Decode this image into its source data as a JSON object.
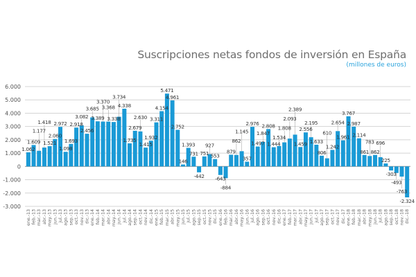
{
  "chart_data": {
    "type": "bar",
    "title": "Suscripciones netas fondos de inversión en España",
    "subtitle": "(millones de euros)",
    "xlabel": "",
    "ylabel": "",
    "ylim": [
      -3000,
      6000
    ],
    "yticks": [
      6000,
      5000,
      4000,
      3000,
      2000,
      1000,
      0,
      -1000,
      -2000,
      -3000
    ],
    "ytick_labels": [
      "6.000",
      "5.000",
      "4.000",
      "3.000",
      "2.000",
      "1.000",
      "0",
      "-1.000",
      "-2.000",
      "-3.000"
    ],
    "grid": true,
    "bar_color": "#1a9ad6",
    "categories": [
      "ene.-13",
      "feb.-13",
      "mar.-13",
      "abr.-13",
      "may.-13",
      "jun.-13",
      "jul.-13",
      "ago.-13",
      "sep.-13",
      "oct.-13",
      "nov.-13",
      "dic.-13",
      "ene.-14",
      "feb.-14",
      "mar.-14",
      "abr.-14",
      "may.-14",
      "jun.-14",
      "jul.-14",
      "ago.-14",
      "sep.-14",
      "oct.-14",
      "nov.-14",
      "dic.-14",
      "ene.-15",
      "feb.-15",
      "mar.-15",
      "abr.-15",
      "may.-15",
      "jun.-15",
      "jul.-15",
      "ago.-15",
      "sep.-15",
      "oct.-15",
      "nov.-15",
      "dic.-15",
      "ene.-16",
      "feb.-16",
      "mar.-16",
      "abr.-16",
      "may.-16",
      "jun.-16",
      "jul.-16",
      "ago.-16",
      "sep.-16",
      "oct.-16",
      "nov.-16",
      "dic.-16",
      "ene.-17",
      "feb.-17",
      "mar.-17",
      "abr.-17",
      "may.-17",
      "jun.-17",
      "jul.-17",
      "ago.-17",
      "sep.-17",
      "oct.-17",
      "nov.-17",
      "dic.-17",
      "ene.-18",
      "feb.-18",
      "mar.-18",
      "abr.-18",
      "may.-18",
      "jun.-18",
      "jul.-18",
      "ago.-18",
      "sep.-18",
      "oct.-18",
      "nov.-18",
      "dic.-18"
    ],
    "values": [
      1062,
      1609,
      1177,
      1418,
      1521,
      2060,
      2972,
      1098,
      1693,
      2918,
      3082,
      2456,
      3685,
      3389,
      3370,
      3368,
      3338,
      3734,
      4338,
      1735,
      2679,
      2630,
      1415,
      1932,
      3311,
      4154,
      5471,
      4961,
      2752,
      146,
      1393,
      731,
      -442,
      751,
      927,
      553,
      -643,
      -884,
      879,
      862,
      1145,
      357,
      2976,
      1497,
      1847,
      2808,
      1444,
      1534,
      1808,
      2093,
      2389,
      1459,
      2556,
      2195,
      1633,
      806,
      610,
      1242,
      2654,
      1961,
      3767,
      2987,
      2114,
      861,
      783,
      862,
      696,
      225,
      -303,
      -493,
      -763,
      -2324
    ],
    "data_labels": [
      "1.062",
      "1.609",
      "1.177",
      "1.418",
      "1.521",
      "2.060",
      "2.972",
      "1.098",
      "1.693",
      "2.918",
      "3.082",
      "2.456",
      "3.685",
      "3.389",
      "3.370",
      "3.368",
      "3.338",
      "3.734",
      "4.338",
      "1.735",
      "2.679",
      "2.630",
      "1.415",
      "1.932",
      "3.311",
      "4.154",
      "5.471",
      "4.961",
      "2.752",
      "146",
      "1.393",
      "731",
      "-442",
      "751",
      "927",
      "553",
      "-643",
      "-884",
      "879",
      "862",
      "1.145",
      "357",
      "2.976",
      "1.497",
      "1.847",
      "2.808",
      "1.444",
      "1.534",
      "1.808",
      "2.093",
      "2.389",
      "1.459",
      "2.556",
      "2.195",
      "1.633",
      "806",
      "610",
      "1.242",
      "2.654",
      "1.961",
      "3.767",
      "2.987",
      "2.114",
      "861",
      "783",
      "862",
      "696",
      "225",
      "-303",
      "-493",
      "-763",
      "-2.324"
    ]
  }
}
